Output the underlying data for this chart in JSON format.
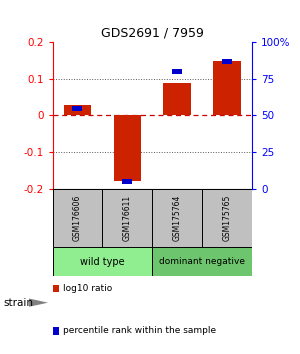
{
  "title": "GDS2691 / 7959",
  "samples": [
    "GSM176606",
    "GSM176611",
    "GSM175764",
    "GSM175765"
  ],
  "log10_ratio": [
    0.03,
    -0.18,
    0.09,
    0.15
  ],
  "percentile_rank": [
    55,
    5,
    80,
    87
  ],
  "ylim_left": [
    -0.2,
    0.2
  ],
  "ylim_right": [
    0,
    100
  ],
  "yticks_left": [
    -0.2,
    -0.1,
    0,
    0.1,
    0.2
  ],
  "yticks_right": [
    0,
    25,
    50,
    75,
    100
  ],
  "ytick_labels_right": [
    "0",
    "25",
    "50",
    "75",
    "100%"
  ],
  "bar_color_red": "#CC2200",
  "bar_color_blue": "#0000CC",
  "bar_width": 0.55,
  "hline_color": "#CC0000",
  "dotted_line_color": "#555555",
  "sample_box_color": "#C0C0C0",
  "group_box_color_wt": "#90EE90",
  "group_box_color_dn": "#6DC66D",
  "group_labels": [
    "wild type",
    "dominant negative"
  ],
  "legend_red_label": "log10 ratio",
  "legend_blue_label": "percentile rank within the sample",
  "strain_label": "strain",
  "background_color": "#ffffff"
}
